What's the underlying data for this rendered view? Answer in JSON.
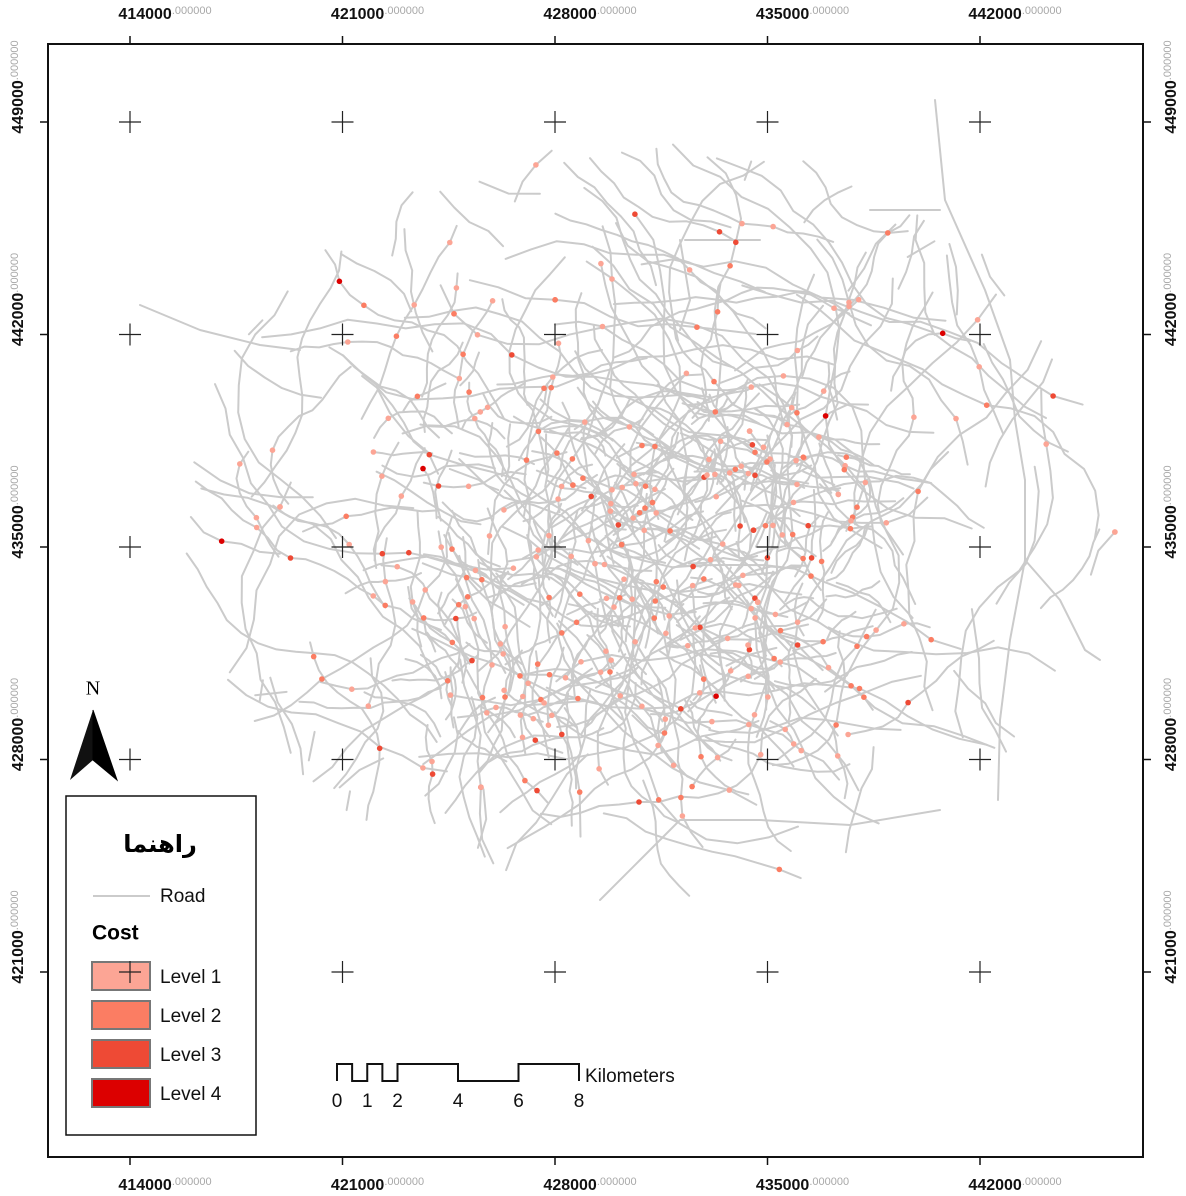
{
  "map": {
    "x_ticks": [
      414000,
      421000,
      428000,
      435000,
      442000
    ],
    "y_ticks": [
      449000,
      442000,
      435000,
      428000,
      421000
    ],
    "tick_suffix": ".000000",
    "north": "N"
  },
  "legend": {
    "title": "راهنما",
    "road": "Road",
    "cost_title": "Cost",
    "levels": [
      {
        "label": "Level 1",
        "color": "#fca595"
      },
      {
        "label": "Level 2",
        "color": "#fb7d63"
      },
      {
        "label": "Level 3",
        "color": "#ee4a35"
      },
      {
        "label": "Level 4",
        "color": "#dc0000"
      }
    ]
  },
  "scale_bar": {
    "ticks": [
      0,
      1,
      2,
      4,
      6,
      8
    ],
    "unit": "Kilometers"
  }
}
